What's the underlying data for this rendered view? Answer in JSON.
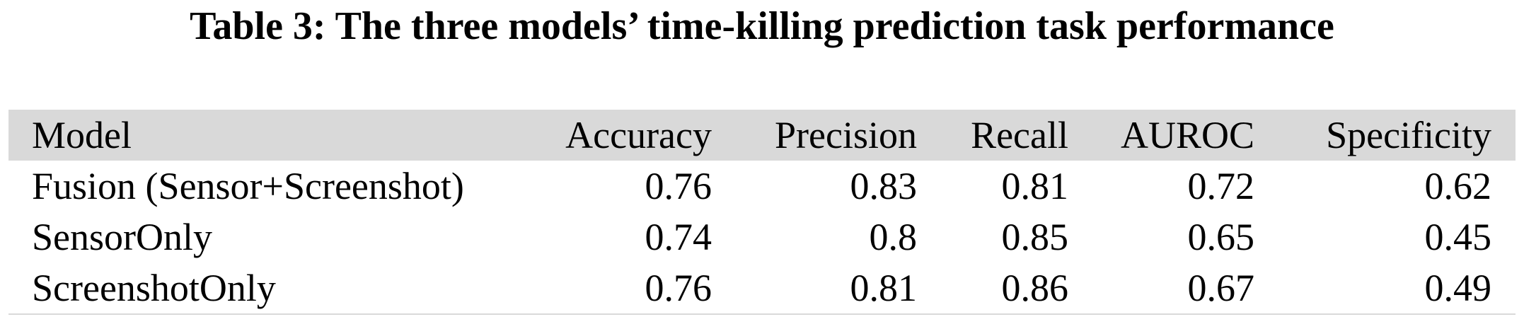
{
  "caption": "Table 3: The three models’ time-killing prediction task performance",
  "table": {
    "columns": [
      "Model",
      "Accuracy",
      "Precision",
      "Recall",
      "AUROC",
      "Specificity"
    ],
    "rows": [
      [
        "Fusion (Sensor+Screenshot)",
        "0.76",
        "0.83",
        "0.81",
        "0.72",
        "0.62"
      ],
      [
        "SensorOnly",
        "0.74",
        "0.8",
        "0.85",
        "0.65",
        "0.45"
      ],
      [
        "ScreenshotOnly",
        "0.76",
        "0.81",
        "0.86",
        "0.67",
        "0.49"
      ]
    ]
  },
  "colors": {
    "header_background": "#d9d9d9",
    "text": "#000000"
  }
}
